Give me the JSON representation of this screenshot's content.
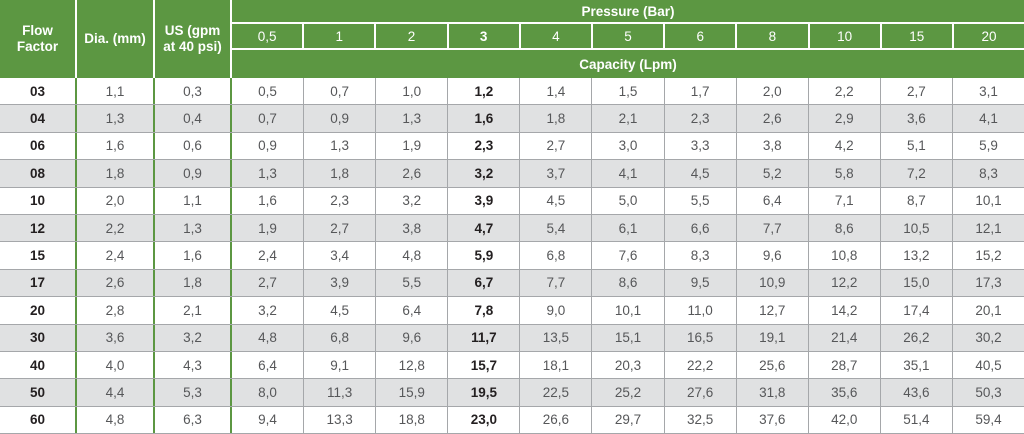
{
  "colors": {
    "header_green": "#5c9742",
    "row_stripe_gray": "#e0e1e2",
    "cell_border_gray": "#a5a7aa",
    "bold_text": "#231f20",
    "value_text_gray": "#565759",
    "header_text_white": "#ffffff"
  },
  "chart_data": {
    "type": "table",
    "header": {
      "flow_factor_label": "Flow Factor",
      "dia_label": "Dia. (mm)",
      "us_label": "US (gpm at 40 psi)",
      "pressure_group_label": "Pressure (Bar)",
      "capacity_group_label": "Capacity (Lpm)",
      "pressure_columns": [
        "0,5",
        "1",
        "2",
        "3",
        "4",
        "5",
        "6",
        "8",
        "10",
        "15",
        "20"
      ],
      "bold_pressure_index": 3
    },
    "rows": [
      {
        "flow_factor": "03",
        "dia_mm": "1,1",
        "us_gpm": "0,3",
        "capacities": [
          "0,5",
          "0,7",
          "1,0",
          "1,2",
          "1,4",
          "1,5",
          "1,7",
          "2,0",
          "2,2",
          "2,7",
          "3,1"
        ]
      },
      {
        "flow_factor": "04",
        "dia_mm": "1,3",
        "us_gpm": "0,4",
        "capacities": [
          "0,7",
          "0,9",
          "1,3",
          "1,6",
          "1,8",
          "2,1",
          "2,3",
          "2,6",
          "2,9",
          "3,6",
          "4,1"
        ]
      },
      {
        "flow_factor": "06",
        "dia_mm": "1,6",
        "us_gpm": "0,6",
        "capacities": [
          "0,9",
          "1,3",
          "1,9",
          "2,3",
          "2,7",
          "3,0",
          "3,3",
          "3,8",
          "4,2",
          "5,1",
          "5,9"
        ]
      },
      {
        "flow_factor": "08",
        "dia_mm": "1,8",
        "us_gpm": "0,9",
        "capacities": [
          "1,3",
          "1,8",
          "2,6",
          "3,2",
          "3,7",
          "4,1",
          "4,5",
          "5,2",
          "5,8",
          "7,2",
          "8,3"
        ]
      },
      {
        "flow_factor": "10",
        "dia_mm": "2,0",
        "us_gpm": "1,1",
        "capacities": [
          "1,6",
          "2,3",
          "3,2",
          "3,9",
          "4,5",
          "5,0",
          "5,5",
          "6,4",
          "7,1",
          "8,7",
          "10,1"
        ]
      },
      {
        "flow_factor": "12",
        "dia_mm": "2,2",
        "us_gpm": "1,3",
        "capacities": [
          "1,9",
          "2,7",
          "3,8",
          "4,7",
          "5,4",
          "6,1",
          "6,6",
          "7,7",
          "8,6",
          "10,5",
          "12,1"
        ]
      },
      {
        "flow_factor": "15",
        "dia_mm": "2,4",
        "us_gpm": "1,6",
        "capacities": [
          "2,4",
          "3,4",
          "4,8",
          "5,9",
          "6,8",
          "7,6",
          "8,3",
          "9,6",
          "10,8",
          "13,2",
          "15,2"
        ]
      },
      {
        "flow_factor": "17",
        "dia_mm": "2,6",
        "us_gpm": "1,8",
        "capacities": [
          "2,7",
          "3,9",
          "5,5",
          "6,7",
          "7,7",
          "8,6",
          "9,5",
          "10,9",
          "12,2",
          "15,0",
          "17,3"
        ]
      },
      {
        "flow_factor": "20",
        "dia_mm": "2,8",
        "us_gpm": "2,1",
        "capacities": [
          "3,2",
          "4,5",
          "6,4",
          "7,8",
          "9,0",
          "10,1",
          "11,0",
          "12,7",
          "14,2",
          "17,4",
          "20,1"
        ]
      },
      {
        "flow_factor": "30",
        "dia_mm": "3,6",
        "us_gpm": "3,2",
        "capacities": [
          "4,8",
          "6,8",
          "9,6",
          "11,7",
          "13,5",
          "15,1",
          "16,5",
          "19,1",
          "21,4",
          "26,2",
          "30,2"
        ]
      },
      {
        "flow_factor": "40",
        "dia_mm": "4,0",
        "us_gpm": "4,3",
        "capacities": [
          "6,4",
          "9,1",
          "12,8",
          "15,7",
          "18,1",
          "20,3",
          "22,2",
          "25,6",
          "28,7",
          "35,1",
          "40,5"
        ]
      },
      {
        "flow_factor": "50",
        "dia_mm": "4,4",
        "us_gpm": "5,3",
        "capacities": [
          "8,0",
          "11,3",
          "15,9",
          "19,5",
          "22,5",
          "25,2",
          "27,6",
          "31,8",
          "35,6",
          "43,6",
          "50,3"
        ]
      },
      {
        "flow_factor": "60",
        "dia_mm": "4,8",
        "us_gpm": "6,3",
        "capacities": [
          "9,4",
          "13,3",
          "18,8",
          "23,0",
          "26,6",
          "29,7",
          "32,5",
          "37,6",
          "42,0",
          "51,4",
          "59,4"
        ]
      }
    ]
  }
}
